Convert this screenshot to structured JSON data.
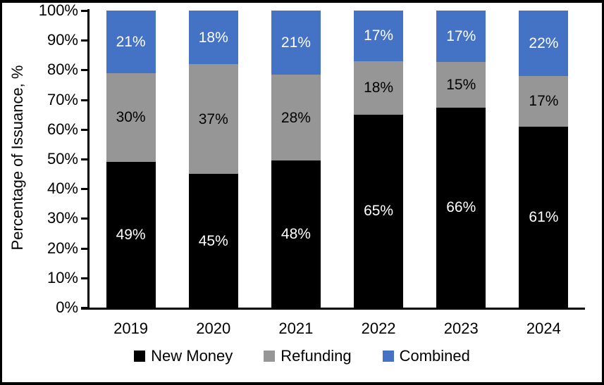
{
  "chart_data": {
    "type": "bar",
    "stacked": true,
    "title": "",
    "xlabel": "",
    "ylabel": "Percentage of Issuance, %",
    "categories": [
      "2019",
      "2020",
      "2021",
      "2022",
      "2023",
      "2024"
    ],
    "series": [
      {
        "name": "New Money",
        "color": "#000000",
        "label_color": "#ffffff",
        "values": [
          49,
          45,
          48,
          65,
          66,
          61
        ]
      },
      {
        "name": "Refunding",
        "color": "#969696",
        "label_color": "#000000",
        "values": [
          30,
          37,
          28,
          18,
          15,
          17
        ]
      },
      {
        "name": "Combined",
        "color": "#4472c4",
        "label_color": "#ffffff",
        "values": [
          21,
          18,
          21,
          17,
          17,
          22
        ]
      }
    ],
    "data_label_suffix": "%",
    "y_ticks": [
      "0%",
      "10%",
      "20%",
      "30%",
      "40%",
      "50%",
      "60%",
      "70%",
      "80%",
      "90%",
      "100%"
    ],
    "ylim": [
      0,
      100
    ],
    "grid": false,
    "legend_position": "bottom"
  }
}
